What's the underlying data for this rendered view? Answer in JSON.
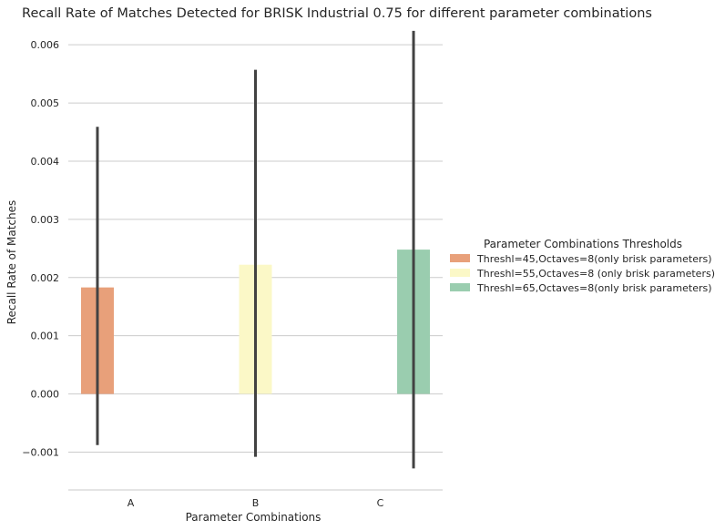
{
  "chart_data": {
    "type": "bar",
    "title": "Recall Rate of Matches Detected for BRISK Industrial 0.75 for different parameter combinations",
    "xlabel": "Parameter Combinations",
    "ylabel": "Recall Rate of Matches",
    "categories": [
      "A",
      "B",
      "C"
    ],
    "ylim": [
      -0.00165,
      0.0063
    ],
    "yticks": [
      -0.001,
      0.0,
      0.001,
      0.002,
      0.003,
      0.004,
      0.005,
      0.006
    ],
    "ytick_labels": [
      "−0.001",
      "0.000",
      "0.001",
      "0.002",
      "0.003",
      "0.004",
      "0.005",
      "0.006"
    ],
    "grid": "horizontal",
    "legend_title": "Parameter Combinations Thresholds",
    "legend_position": "right",
    "series": [
      {
        "name": "Threshl=45,Octaves=8(only brisk parameters)",
        "color": "#e8a07a",
        "values": [
          0.00183,
          null,
          null
        ],
        "error_low": [
          -0.00088,
          null,
          null
        ],
        "error_high": [
          0.00459,
          null,
          null
        ]
      },
      {
        "name": "Threshl=55,Octaves=8 (only brisk parameters)",
        "color": "#fbf8c7",
        "values": [
          null,
          0.00222,
          null
        ],
        "error_low": [
          null,
          -0.00108,
          null
        ],
        "error_high": [
          null,
          0.00557,
          null
        ]
      },
      {
        "name": "Threshl=65,Octaves=8(only brisk parameters)",
        "color": "#9acdaf",
        "values": [
          null,
          null,
          0.00248
        ],
        "error_low": [
          null,
          null,
          -0.00128
        ],
        "error_high": [
          null,
          null,
          0.00624
        ]
      }
    ]
  }
}
